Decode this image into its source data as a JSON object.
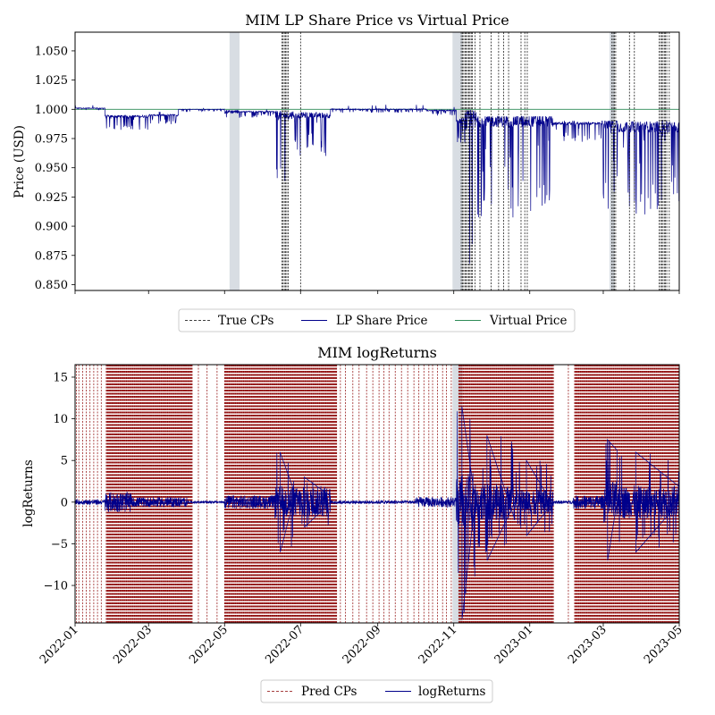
{
  "chart_data": [
    {
      "type": "line",
      "title": "MIM LP Share Price vs Virtual Price",
      "xlabel": "",
      "ylabel": "Price (USD)",
      "xlim": [
        "2022-01-01",
        "2023-05-01"
      ],
      "ylim": [
        0.845,
        1.066
      ],
      "x_tick_labels_shown": false,
      "y_ticks": [
        {
          "v": 0.85,
          "label": "0.850"
        },
        {
          "v": 0.875,
          "label": "0.875"
        },
        {
          "v": 0.9,
          "label": "0.900"
        },
        {
          "v": 0.925,
          "label": "0.925"
        },
        {
          "v": 0.95,
          "label": "0.950"
        },
        {
          "v": 0.975,
          "label": "0.975"
        },
        {
          "v": 1.0,
          "label": "1.000"
        },
        {
          "v": 1.025,
          "label": "1.025"
        },
        {
          "v": 1.05,
          "label": "1.050"
        }
      ],
      "grid": false,
      "legend": {
        "placement": "below-center",
        "entries": [
          "True CPs",
          "LP Share Price",
          "Virtual Price"
        ]
      },
      "series": [
        {
          "name": "LP Share Price",
          "color": "#00008b",
          "segments": [
            {
              "start": "2022-01-01",
              "end": "2022-01-25",
              "base": 1.001,
              "lo": 0.999,
              "hi": 1.004
            },
            {
              "start": "2022-01-25",
              "end": "2022-03-01",
              "base": 0.994,
              "lo": 0.982,
              "hi": 0.999
            },
            {
              "start": "2022-03-01",
              "end": "2022-03-25",
              "base": 0.995,
              "lo": 0.987,
              "hi": 0.999
            },
            {
              "start": "2022-03-25",
              "end": "2022-05-01",
              "base": 1.0,
              "lo": 0.998,
              "hi": 1.001
            },
            {
              "start": "2022-05-01",
              "end": "2022-05-12",
              "base": 0.998,
              "lo": 0.992,
              "hi": 1.016
            },
            {
              "start": "2022-05-12",
              "end": "2022-06-10",
              "base": 0.998,
              "lo": 0.993,
              "hi": 1.0
            },
            {
              "start": "2022-06-10",
              "end": "2022-06-25",
              "base": 0.995,
              "lo": 0.935,
              "hi": 0.999
            },
            {
              "start": "2022-06-25",
              "end": "2022-07-25",
              "base": 0.995,
              "lo": 0.958,
              "hi": 0.999
            },
            {
              "start": "2022-07-25",
              "end": "2022-10-10",
              "base": 1.0,
              "lo": 0.997,
              "hi": 1.004
            },
            {
              "start": "2022-10-10",
              "end": "2022-11-03",
              "base": 0.999,
              "lo": 0.994,
              "hi": 1.002
            },
            {
              "start": "2022-11-03",
              "end": "2022-11-10",
              "base": 0.99,
              "lo": 0.97,
              "hi": 1.01
            },
            {
              "start": "2022-11-10",
              "end": "2022-11-20",
              "base": 0.99,
              "lo": 0.845,
              "hi": 1.003
            },
            {
              "start": "2022-11-20",
              "end": "2023-01-20",
              "base": 0.99,
              "lo": 0.907,
              "hi": 0.994
            },
            {
              "start": "2023-01-20",
              "end": "2023-02-28",
              "base": 0.988,
              "lo": 0.972,
              "hi": 0.991
            },
            {
              "start": "2023-02-28",
              "end": "2023-03-12",
              "base": 0.988,
              "lo": 0.913,
              "hi": 0.99
            },
            {
              "start": "2023-03-12",
              "end": "2023-05-01",
              "base": 0.985,
              "lo": 0.91,
              "hi": 0.99
            }
          ]
        },
        {
          "name": "Virtual Price",
          "color": "#2e8b57",
          "points": [
            [
              "2022-01-01",
              1.0
            ],
            [
              "2023-05-01",
              1.0
            ]
          ]
        }
      ],
      "shaded_regions": [
        {
          "start": "2022-05-05",
          "end": "2022-05-13",
          "color": "#d8dde3"
        },
        {
          "start": "2022-10-31",
          "end": "2022-11-08",
          "color": "#d8dde3"
        },
        {
          "start": "2023-03-06",
          "end": "2023-03-10",
          "color": "#d8dde3"
        }
      ],
      "true_cps": [
        "2022-06-16",
        "2022-06-17",
        "2022-06-18",
        "2022-06-19",
        "2022-06-20",
        "2022-06-21",
        "2022-07-01",
        "2022-11-07",
        "2022-11-08",
        "2022-11-09",
        "2022-11-10",
        "2022-11-11",
        "2022-11-12",
        "2022-11-13",
        "2022-11-14",
        "2022-11-15",
        "2022-11-16",
        "2022-11-18",
        "2022-11-22",
        "2022-12-01",
        "2022-12-07",
        "2022-12-11",
        "2022-12-15",
        "2022-12-25",
        "2022-12-28",
        "2022-12-30",
        "2023-03-08",
        "2023-03-09",
        "2023-03-10",
        "2023-03-11",
        "2023-03-22",
        "2023-03-26",
        "2023-04-15",
        "2023-04-16",
        "2023-04-17",
        "2023-04-18",
        "2023-04-19",
        "2023-04-20",
        "2023-04-21",
        "2023-04-23"
      ]
    },
    {
      "type": "line",
      "title": "MIM logReturns",
      "xlabel": "",
      "ylabel": "logReturns",
      "xlim": [
        "2022-01-01",
        "2023-05-01"
      ],
      "ylim": [
        -14.5,
        16.5
      ],
      "x_ticks": [
        {
          "v": "2022-01-01",
          "label": "2022-01"
        },
        {
          "v": "2022-03-01",
          "label": "2022-03"
        },
        {
          "v": "2022-05-01",
          "label": "2022-05"
        },
        {
          "v": "2022-07-01",
          "label": "2022-07"
        },
        {
          "v": "2022-09-01",
          "label": "2022-09"
        },
        {
          "v": "2022-11-01",
          "label": "2022-11"
        },
        {
          "v": "2023-01-01",
          "label": "2023-01"
        },
        {
          "v": "2023-03-01",
          "label": "2023-03"
        },
        {
          "v": "2023-05-01",
          "label": "2023-05"
        }
      ],
      "y_ticks": [
        {
          "v": -10,
          "label": "−10"
        },
        {
          "v": -5,
          "label": "−5"
        },
        {
          "v": 0,
          "label": "0"
        },
        {
          "v": 5,
          "label": "5"
        },
        {
          "v": 10,
          "label": "10"
        },
        {
          "v": 15,
          "label": "15"
        }
      ],
      "grid": false,
      "legend": {
        "placement": "below-center",
        "entries": [
          "Pred CPs",
          "logReturns"
        ]
      },
      "series": [
        {
          "name": "logReturns",
          "color": "#00008b",
          "segments": [
            {
              "start": "2022-01-01",
              "end": "2022-01-25",
              "amp": 0.3
            },
            {
              "start": "2022-01-25",
              "end": "2022-02-15",
              "amp": 1.2
            },
            {
              "start": "2022-02-15",
              "end": "2022-04-01",
              "amp": 0.6
            },
            {
              "start": "2022-04-01",
              "end": "2022-05-01",
              "amp": 0.15
            },
            {
              "start": "2022-05-01",
              "end": "2022-06-10",
              "amp": 0.8
            },
            {
              "start": "2022-06-10",
              "end": "2022-06-25",
              "amp": 2.0,
              "spikeUp": 6,
              "spikeDown": -6
            },
            {
              "start": "2022-06-25",
              "end": "2022-07-25",
              "amp": 1.8,
              "spikeUp": 3,
              "spikeDown": -3
            },
            {
              "start": "2022-07-25",
              "end": "2022-10-01",
              "amp": 0.2
            },
            {
              "start": "2022-10-01",
              "end": "2022-11-03",
              "amp": 0.6
            },
            {
              "start": "2022-11-03",
              "end": "2022-11-18",
              "amp": 3.5,
              "spikeUp": 11.5,
              "spikeDown": -14
            },
            {
              "start": "2022-11-18",
              "end": "2022-12-20",
              "amp": 2.2,
              "spikeUp": 8,
              "spikeDown": -7
            },
            {
              "start": "2022-12-20",
              "end": "2023-01-20",
              "amp": 1.5,
              "spikeUp": 5,
              "spikeDown": -4
            },
            {
              "start": "2023-01-20",
              "end": "2023-02-05",
              "amp": 0.2
            },
            {
              "start": "2023-02-05",
              "end": "2023-03-01",
              "amp": 0.8
            },
            {
              "start": "2023-03-01",
              "end": "2023-03-12",
              "amp": 2.5,
              "spikeUp": 7.5,
              "spikeDown": -7
            },
            {
              "start": "2023-03-12",
              "end": "2023-05-01",
              "amp": 2.0,
              "spikeUp": 6,
              "spikeDown": -6
            }
          ]
        }
      ],
      "shaded_regions": [
        {
          "start": "2022-10-31",
          "end": "2022-11-08",
          "color": "#d8dde3"
        }
      ],
      "pred_cps_color": "#8b0000",
      "pred_cps_dense_ranges": [
        [
          "2022-01-26",
          "2022-04-05"
        ],
        [
          "2022-05-01",
          "2022-07-30"
        ],
        [
          "2022-11-05",
          "2023-01-20"
        ],
        [
          "2023-02-06",
          "2023-05-01"
        ]
      ],
      "pred_cps_sparse": [
        "2022-01-02",
        "2022-01-04",
        "2022-01-07",
        "2022-01-10",
        "2022-01-13",
        "2022-01-16",
        "2022-01-19",
        "2022-01-22",
        "2022-04-10",
        "2022-04-17",
        "2022-04-25",
        "2022-08-02",
        "2022-08-06",
        "2022-08-12",
        "2022-08-17",
        "2022-08-23",
        "2022-08-28",
        "2022-09-02",
        "2022-09-06",
        "2022-09-10",
        "2022-09-15",
        "2022-09-20",
        "2022-09-25",
        "2022-09-30",
        "2022-10-04",
        "2022-10-08",
        "2022-10-12",
        "2022-10-15",
        "2022-10-19",
        "2022-10-23",
        "2022-10-26",
        "2022-10-30",
        "2023-02-01"
      ]
    }
  ]
}
